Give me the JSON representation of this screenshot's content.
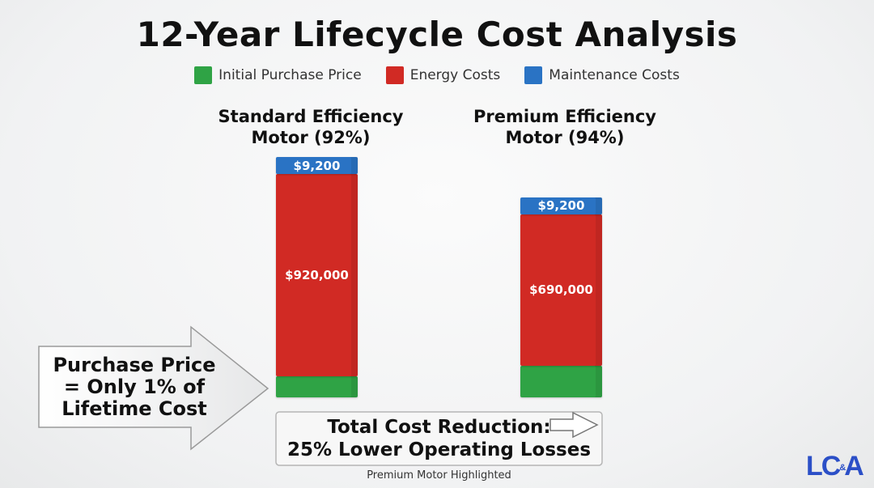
{
  "chart_data": {
    "type": "bar",
    "stacked": true,
    "title": "12-Year Lifecycle Cost Analysis",
    "categories": [
      "Standard Efficiency Motor (92%)",
      "Premium Efficiency Motor (94%)"
    ],
    "category_lines": [
      [
        "Standard Efficiency",
        "Motor (92%)"
      ],
      [
        "Premium Efficiency",
        "Motor (94%)"
      ]
    ],
    "series": [
      {
        "name": "Initial Purchase Price",
        "color": "#2fa345",
        "values": [
          null,
          null
        ],
        "labels": [
          "",
          ""
        ]
      },
      {
        "name": "Energy Costs",
        "color": "#d12a24",
        "values": [
          920000,
          690000
        ],
        "labels": [
          "$920,000",
          "$690,000"
        ]
      },
      {
        "name": "Maintenance Costs",
        "color": "#2a73c4",
        "values": [
          9200,
          9200
        ],
        "labels": [
          "$9,200",
          "$9,200"
        ]
      }
    ],
    "legend": "top-center",
    "grid": false,
    "xlabel": "",
    "ylabel": ""
  },
  "callout": {
    "lines": [
      "Purchase Price",
      "= Only 1% of",
      "Lifetime Cost"
    ]
  },
  "reduction": {
    "lines": [
      "Total Cost Reduction:",
      "25% Lower Operating Losses"
    ]
  },
  "footnote": "Premium Motor Highlighted",
  "logo": "LC&A"
}
